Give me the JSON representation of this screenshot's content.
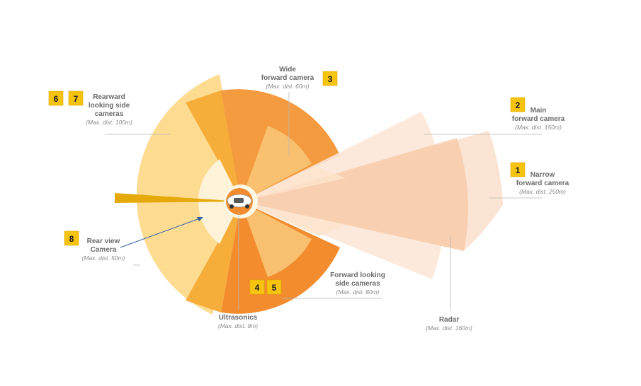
{
  "sensors": [
    {
      "id": "narrow",
      "badges": [
        "1"
      ],
      "name_lines": [
        "Narrow",
        "forward camera"
      ],
      "dist": "(Max. dist. 250m)",
      "color": "#fbe3d1"
    },
    {
      "id": "main",
      "badges": [
        "2"
      ],
      "name_lines": [
        "Main",
        "forward camera"
      ],
      "dist": "(Max. dist. 150m)",
      "color": "#f9d6bd"
    },
    {
      "id": "wide",
      "badges": [
        "3"
      ],
      "name_lines": [
        "Wide",
        "forward camera"
      ],
      "dist": "(Max. dist. 60m)",
      "color": "#f49a3f"
    },
    {
      "id": "forward-side",
      "badges": [
        "4",
        "5"
      ],
      "name_lines": [
        "Forward looking",
        "side cameras"
      ],
      "dist": "(Max. dist. 80m)",
      "color": "#f28c2e"
    },
    {
      "id": "rearward-side",
      "badges": [
        "6",
        "7"
      ],
      "name_lines": [
        "Rearward",
        "looking side",
        "cameras"
      ],
      "dist": "(Max. dist: 100m)",
      "color": "#fddc92"
    },
    {
      "id": "rear-view",
      "badges": [
        "8"
      ],
      "name_lines": [
        "Rear view",
        "Camera"
      ],
      "dist": "(Max. dist. 50m)",
      "color": "#fef3d8"
    },
    {
      "id": "radar",
      "badges": [],
      "name_lines": [
        "Radar"
      ],
      "dist": "(Max. dist. 160m)",
      "color": "#f7c8a4"
    },
    {
      "id": "ultrasonics",
      "badges": [],
      "name_lines": [
        "Ultrasonics"
      ],
      "dist": "(Max. dist. 8m)",
      "color": "#fff8e6"
    }
  ],
  "colors": {
    "rear_wedge_gold": "#e6a90a",
    "rear_side_dark": "#f6ad3a",
    "inner_ring": "#f9c070",
    "badge": "#f6c40f",
    "arrow": "#2e5fa6"
  }
}
